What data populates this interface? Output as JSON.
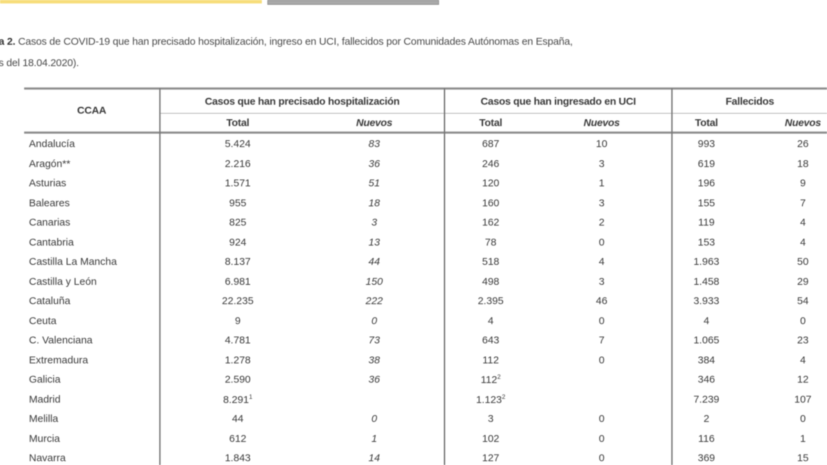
{
  "caption": {
    "label": "a 2.",
    "line1": " Casos de COVID-19 que han precisado hospitalización, ingreso en UCI, fallecidos  por Comunidades Autónomas en España,",
    "line2": "s del 18.04.2020)."
  },
  "table": {
    "headers": {
      "ccaa": "CCAA",
      "hosp": "Casos que han precisado hospitalización",
      "uci": "Casos que han ingresado en UCI",
      "fall": "Fallecidos",
      "total": "Total",
      "nuevos": "Nuevos"
    },
    "rows": [
      {
        "ccaa": "Andalucía",
        "hosp_total": "5.424",
        "hosp_nuevos": "83",
        "uci_total": "687",
        "uci_nuevos": "10",
        "fall_total": "993",
        "fall_nuevos": "26"
      },
      {
        "ccaa": "Aragón**",
        "hosp_total": "2.216",
        "hosp_nuevos": "36",
        "uci_total": "246",
        "uci_nuevos": "3",
        "fall_total": "619",
        "fall_nuevos": "18"
      },
      {
        "ccaa": "Asturias",
        "hosp_total": "1.571",
        "hosp_nuevos": "51",
        "uci_total": "120",
        "uci_nuevos": "1",
        "fall_total": "196",
        "fall_nuevos": "9"
      },
      {
        "ccaa": "Baleares",
        "hosp_total": "955",
        "hosp_nuevos": "18",
        "uci_total": "160",
        "uci_nuevos": "3",
        "fall_total": "155",
        "fall_nuevos": "7"
      },
      {
        "ccaa": "Canarias",
        "hosp_total": "825",
        "hosp_nuevos": "3",
        "uci_total": "162",
        "uci_nuevos": "2",
        "fall_total": "119",
        "fall_nuevos": "4"
      },
      {
        "ccaa": "Cantabria",
        "hosp_total": "924",
        "hosp_nuevos": "13",
        "uci_total": "78",
        "uci_nuevos": "0",
        "fall_total": "153",
        "fall_nuevos": "4"
      },
      {
        "ccaa": "Castilla La Mancha",
        "hosp_total": "8.137",
        "hosp_nuevos": "44",
        "uci_total": "518",
        "uci_nuevos": "4",
        "fall_total": "1.963",
        "fall_nuevos": "50"
      },
      {
        "ccaa": "Castilla y León",
        "hosp_total": "6.981",
        "hosp_nuevos": "150",
        "uci_total": "498",
        "uci_nuevos": "3",
        "fall_total": "1.458",
        "fall_nuevos": "29"
      },
      {
        "ccaa": "Cataluña",
        "hosp_total": "22.235",
        "hosp_nuevos": "222",
        "uci_total": "2.395",
        "uci_nuevos": "46",
        "fall_total": "3.933",
        "fall_nuevos": "54"
      },
      {
        "ccaa": "Ceuta",
        "hosp_total": "9",
        "hosp_nuevos": "0",
        "uci_total": "4",
        "uci_nuevos": "0",
        "fall_total": "4",
        "fall_nuevos": "0"
      },
      {
        "ccaa": "C. Valenciana",
        "hosp_total": "4.781",
        "hosp_nuevos": "73",
        "uci_total": "643",
        "uci_nuevos": "7",
        "fall_total": "1.065",
        "fall_nuevos": "23"
      },
      {
        "ccaa": "Extremadura",
        "hosp_total": "1.278",
        "hosp_nuevos": "38",
        "uci_total": "112",
        "uci_nuevos": "0",
        "fall_total": "384",
        "fall_nuevos": "4"
      },
      {
        "ccaa": "Galicia",
        "hosp_total": "2.590",
        "hosp_nuevos": "36",
        "uci_total": "112",
        "uci_total_sup": "2",
        "uci_nuevos": "",
        "fall_total": "346",
        "fall_nuevos": "12"
      },
      {
        "ccaa": "Madrid",
        "hosp_total": "8.291",
        "hosp_total_sup": "1",
        "hosp_nuevos": "",
        "uci_total": "1.123",
        "uci_total_sup": "2",
        "uci_nuevos": "",
        "fall_total": "7.239",
        "fall_nuevos": "107"
      },
      {
        "ccaa": "Melilla",
        "hosp_total": "44",
        "hosp_nuevos": "0",
        "uci_total": "3",
        "uci_nuevos": "0",
        "fall_total": "2",
        "fall_nuevos": "0"
      },
      {
        "ccaa": "Murcia",
        "hosp_total": "612",
        "hosp_nuevos": "1",
        "uci_total": "102",
        "uci_nuevos": "0",
        "fall_total": "116",
        "fall_nuevos": "1"
      },
      {
        "ccaa": "Navarra",
        "hosp_total": "1.843",
        "hosp_nuevos": "14",
        "uci_total": "127",
        "uci_nuevos": "0",
        "fall_total": "369",
        "fall_nuevos": "15"
      }
    ]
  }
}
